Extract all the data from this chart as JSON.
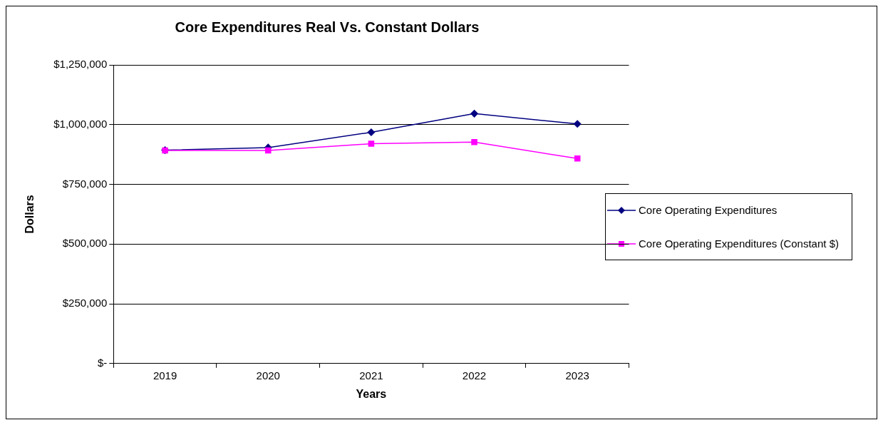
{
  "chart_data": {
    "type": "line",
    "title": "Core Expenditures Real Vs. Constant Dollars",
    "xlabel": "Years",
    "ylabel": "Dollars",
    "categories": [
      "2019",
      "2020",
      "2021",
      "2022",
      "2023"
    ],
    "series": [
      {
        "name": "Core Operating Expenditures",
        "color": "#000080",
        "marker": "diamond",
        "values": [
          893000,
          904000,
          968000,
          1046000,
          1003000
        ]
      },
      {
        "name": "Core Operating Expenditures (Constant $)",
        "color": "#ff00ff",
        "marker": "square",
        "values": [
          892000,
          892000,
          920000,
          927000,
          858000
        ]
      }
    ],
    "ylim": [
      0,
      1250000
    ],
    "yticks": [
      {
        "value": 0,
        "label": "$-"
      },
      {
        "value": 250000,
        "label": "$250,000"
      },
      {
        "value": 500000,
        "label": "$500,000"
      },
      {
        "value": 750000,
        "label": "$750,000"
      },
      {
        "value": 1000000,
        "label": "$1,000,000"
      },
      {
        "value": 1250000,
        "label": "$1,250,000"
      }
    ],
    "grid": "y",
    "legend": "right",
    "line_style": "solid"
  }
}
